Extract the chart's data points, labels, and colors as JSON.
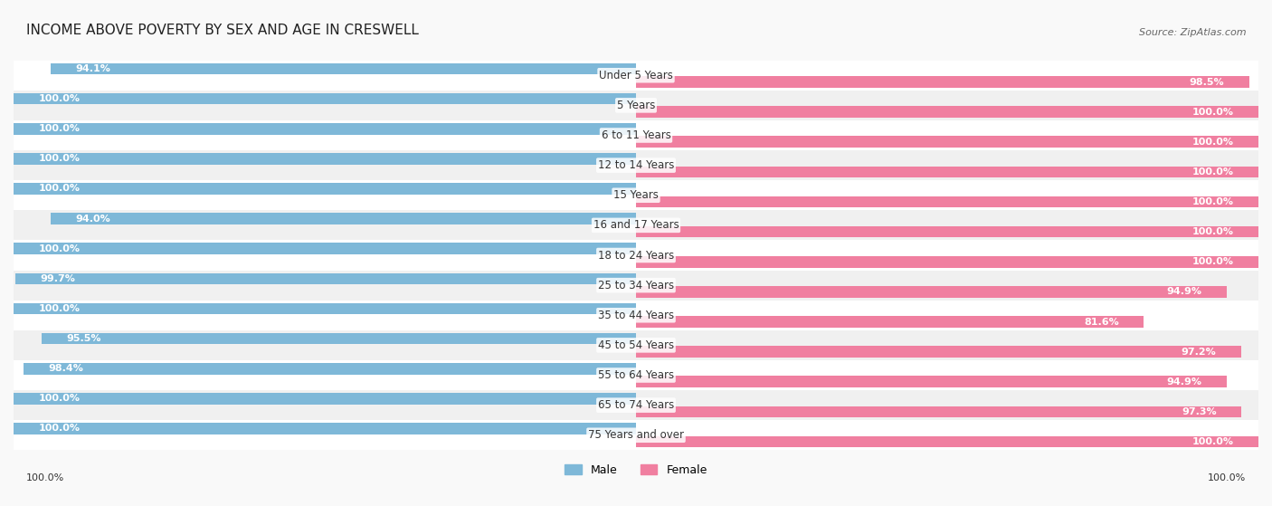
{
  "title": "INCOME ABOVE POVERTY BY SEX AND AGE IN CRESWELL",
  "source": "Source: ZipAtlas.com",
  "categories": [
    "Under 5 Years",
    "5 Years",
    "6 to 11 Years",
    "12 to 14 Years",
    "15 Years",
    "16 and 17 Years",
    "18 to 24 Years",
    "25 to 34 Years",
    "35 to 44 Years",
    "45 to 54 Years",
    "55 to 64 Years",
    "65 to 74 Years",
    "75 Years and over"
  ],
  "male_values": [
    94.1,
    100.0,
    100.0,
    100.0,
    100.0,
    94.0,
    100.0,
    99.7,
    100.0,
    95.5,
    98.4,
    100.0,
    100.0
  ],
  "female_values": [
    98.5,
    100.0,
    100.0,
    100.0,
    100.0,
    100.0,
    100.0,
    94.9,
    81.6,
    97.2,
    94.9,
    97.3,
    100.0
  ],
  "male_color": "#7eb8d8",
  "female_color": "#f07fa0",
  "male_label": "Male",
  "female_label": "Female",
  "bar_height": 0.38,
  "bg_color": "#f9f9f9",
  "row_even_color": "#ffffff",
  "row_odd_color": "#f0f0f0",
  "xlim": [
    0,
    100
  ],
  "label_fontsize": 8.5,
  "title_fontsize": 11,
  "value_fontsize": 8,
  "category_fontsize": 8.5,
  "footer_label": "100.0%",
  "footer_right_label": "100.0%"
}
